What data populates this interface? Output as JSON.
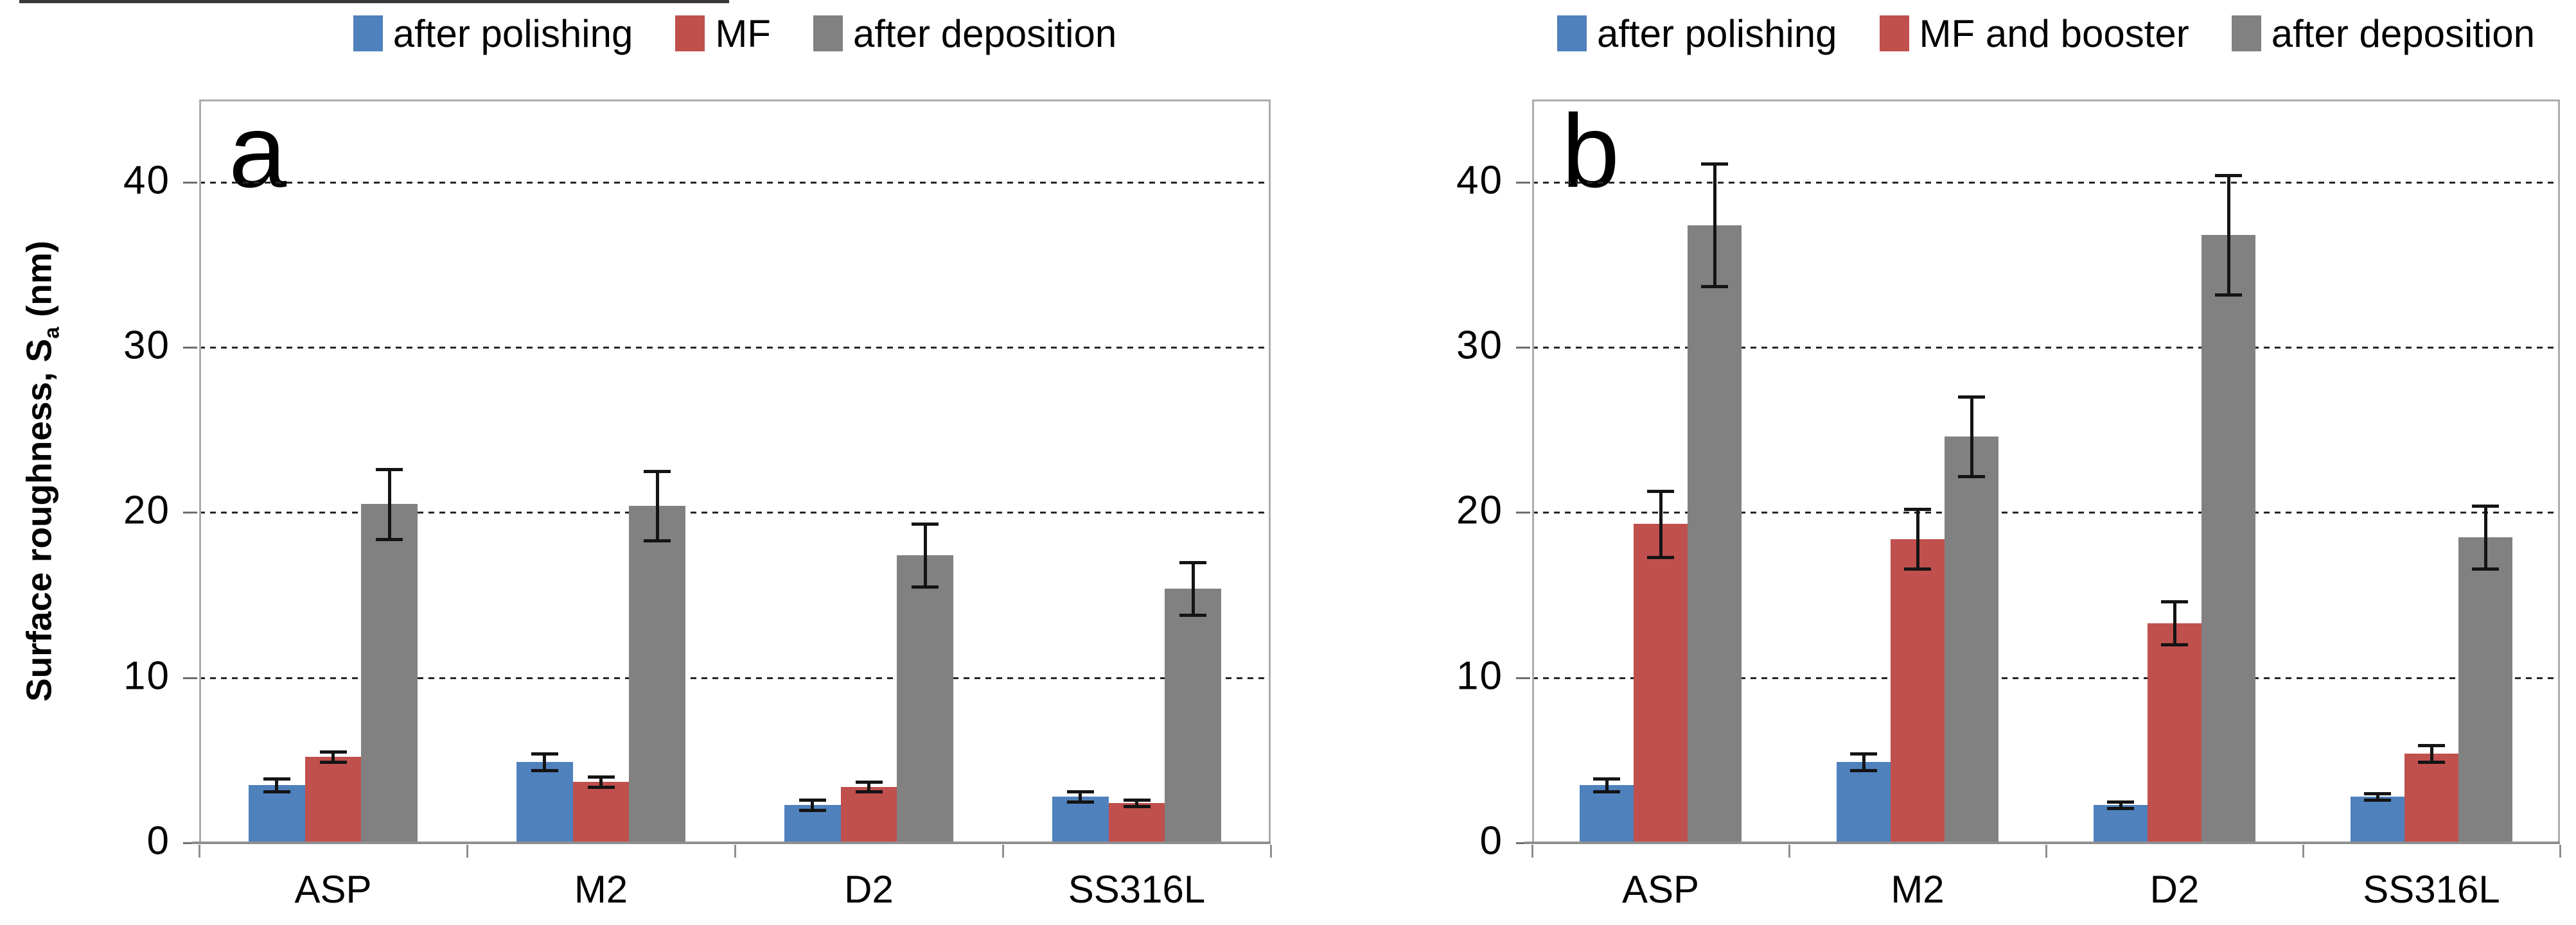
{
  "figure": {
    "ylabel": {
      "prefix": "Surface roughness, S",
      "sub": "a",
      "suffix": " (nm)"
    }
  },
  "chart_data": [
    {
      "type": "bar",
      "panel_letter": "a",
      "title": "",
      "xlabel": "",
      "ylabel": "Surface roughness, Sa (nm)",
      "ylim": [
        0,
        45
      ],
      "y_ticks": [
        0,
        10,
        20,
        30,
        40
      ],
      "grid": "horizontal-dashed",
      "legend_position": "top-center",
      "categories": [
        "ASP",
        "M2",
        "D2",
        "SS316L"
      ],
      "series": [
        {
          "name": "after polishing",
          "color": "#4F81BD",
          "values": [
            3.5,
            4.9,
            2.3,
            2.8
          ],
          "errors": [
            0.4,
            0.5,
            0.3,
            0.3
          ]
        },
        {
          "name": "MF",
          "color": "#C0504D",
          "values": [
            5.2,
            3.7,
            3.4,
            2.4
          ],
          "errors": [
            0.3,
            0.3,
            0.3,
            0.2
          ]
        },
        {
          "name": "after deposition",
          "color": "#818181",
          "values": [
            20.5,
            20.4,
            17.4,
            15.4
          ],
          "errors": [
            2.1,
            2.1,
            1.9,
            1.6
          ]
        }
      ]
    },
    {
      "type": "bar",
      "panel_letter": "b",
      "title": "",
      "xlabel": "",
      "ylabel": "Surface roughness, Sa (nm)",
      "ylim": [
        0,
        45
      ],
      "y_ticks": [
        0,
        10,
        20,
        30,
        40
      ],
      "grid": "horizontal-dashed",
      "legend_position": "top-center",
      "categories": [
        "ASP",
        "M2",
        "D2",
        "SS316L"
      ],
      "series": [
        {
          "name": "after polishing",
          "color": "#4F81BD",
          "values": [
            3.5,
            4.9,
            2.3,
            2.8
          ],
          "errors": [
            0.4,
            0.5,
            0.2,
            0.2
          ]
        },
        {
          "name": "MF and booster",
          "color": "#C0504D",
          "values": [
            19.3,
            18.4,
            13.3,
            5.4
          ],
          "errors": [
            2.0,
            1.8,
            1.3,
            0.5
          ]
        },
        {
          "name": "after deposition",
          "color": "#818181",
          "values": [
            37.4,
            24.6,
            36.8,
            18.5
          ],
          "errors": [
            3.7,
            2.4,
            3.6,
            1.9
          ]
        }
      ]
    }
  ]
}
